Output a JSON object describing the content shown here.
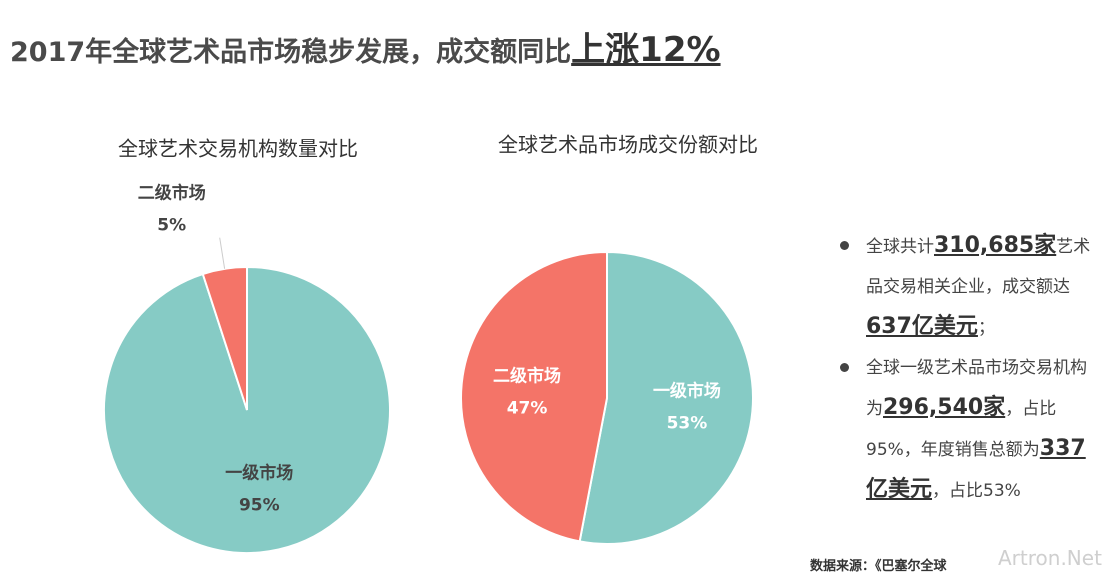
{
  "header": {
    "title": "2017年全球艺术品市场稳步发展，成交额同比",
    "highlight": "上涨12%"
  },
  "chart_data": [
    {
      "type": "pie",
      "title": "全球艺术交易机构数量对比",
      "categories": [
        "一级市场",
        "二级市场"
      ],
      "values": [
        95,
        5
      ],
      "value_labels": [
        "95%",
        "5%"
      ],
      "colors": [
        "#86cbc5",
        "#f47468"
      ]
    },
    {
      "type": "pie",
      "title": "全球艺术品市场成交份额对比",
      "categories": [
        "一级市场",
        "二级市场"
      ],
      "values": [
        53,
        47
      ],
      "value_labels": [
        "53%",
        "47%"
      ],
      "colors": [
        "#86cbc5",
        "#f47468"
      ]
    }
  ],
  "bullets": [
    [
      {
        "text": "全球共计"
      },
      {
        "text": "310,685家",
        "strong": true
      },
      {
        "text": "艺术品交易相关企业，成交额达"
      },
      {
        "text": "637亿美元",
        "strong": true
      },
      {
        "text": "；"
      }
    ],
    [
      {
        "text": "全球一级艺术品市场交易机构为"
      },
      {
        "text": "296,540家",
        "strong": true
      },
      {
        "text": "，占比95%，年度销售总额为"
      },
      {
        "text": "337亿美元",
        "strong": true
      },
      {
        "text": "，占比53%"
      }
    ]
  ],
  "source": "数据来源：《巴塞尔全球",
  "watermark": "Artron.Net"
}
